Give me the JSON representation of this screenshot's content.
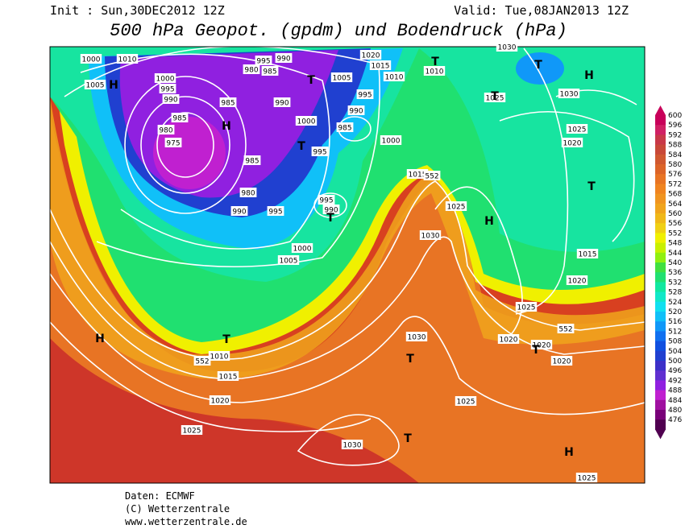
{
  "header": {
    "init": "Init : Sun,30DEC2012 12Z",
    "valid": "Valid: Tue,08JAN2013 12Z",
    "title": "500 hPa Geopot. (gpdm) und Bodendruck (hPa)"
  },
  "map": {
    "isobar_labels": [
      1000,
      1010,
      1005,
      1000,
      995,
      990,
      985,
      980,
      975,
      985,
      985,
      980,
      990,
      995,
      995,
      990,
      980,
      985,
      990,
      1000,
      995,
      985,
      990,
      995,
      1005,
      1020,
      1015,
      1010,
      1010,
      1025,
      1030,
      1025,
      1020,
      1000,
      1015,
      995,
      990,
      1025,
      1030,
      1000,
      1005,
      1015,
      1020,
      1025,
      1020,
      1020,
      1020,
      1010,
      1015,
      1020,
      1025,
      1030,
      1025,
      1030,
      1025,
      1030
    ],
    "contour_labels": [
      552,
      552,
      552
    ],
    "pressure_centers": [
      "H",
      "H",
      "T",
      "T",
      "T",
      "T",
      "H",
      "T",
      "T",
      "T",
      "H",
      "T",
      "H",
      "T",
      "T",
      "T",
      "H"
    ]
  },
  "colorbar": {
    "labels": [
      600,
      596,
      592,
      588,
      584,
      580,
      576,
      572,
      568,
      564,
      560,
      556,
      552,
      548,
      544,
      540,
      536,
      532,
      528,
      524,
      520,
      516,
      512,
      508,
      504,
      500,
      496,
      492,
      488,
      484,
      480,
      476
    ],
    "colors": [
      "#c8005a",
      "#d02064",
      "#c83848",
      "#c84838",
      "#d05830",
      "#dc6428",
      "#e87424",
      "#f08420",
      "#f09420",
      "#f0a41c",
      "#f0b818",
      "#f0d014",
      "#f0f000",
      "#c8f000",
      "#90f010",
      "#40e040",
      "#20e070",
      "#10e8a0",
      "#10e8c8",
      "#10e0f0",
      "#10c0f8",
      "#1098f8",
      "#1070f0",
      "#1050e0",
      "#2040d0",
      "#3c30c8",
      "#6030d0",
      "#9020e0",
      "#c020d0",
      "#a010a0",
      "#780078",
      "#500050"
    ]
  },
  "footer": {
    "source": "Daten: ECMWF",
    "copyright": "(C) Wetterzentrale",
    "url": "www.wetterzentrale.de"
  }
}
